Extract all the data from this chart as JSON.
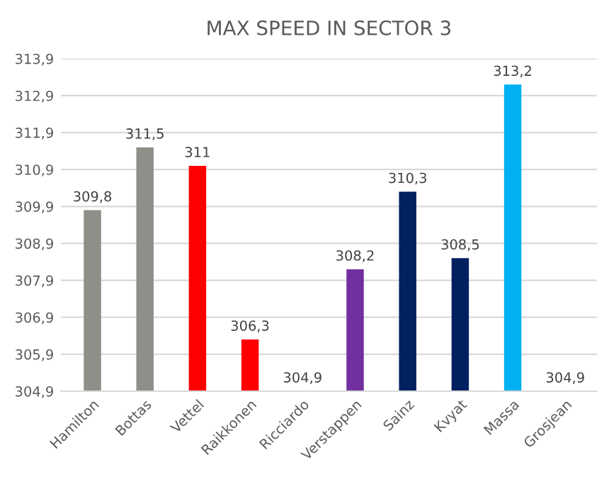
{
  "chart_data": {
    "type": "bar",
    "title": "MAX SPEED IN SECTOR 3",
    "categories": [
      "Hamilton",
      "Bottas",
      "Vettel",
      "Raikkonen",
      "Ricciardo",
      "Verstappen",
      "Sainz",
      "Kvyat",
      "Massa",
      "Grosjean"
    ],
    "values": [
      309.8,
      311.5,
      311,
      306.3,
      304.9,
      308.2,
      310.3,
      308.5,
      313.2,
      304.9
    ],
    "value_labels": [
      "309,8",
      "311,5",
      "311",
      "306,3",
      "304,9",
      "308,2",
      "310,3",
      "308,5",
      "313,2",
      "304,9"
    ],
    "colors": [
      "#8c9088",
      "#8c9088",
      "#ff0000",
      "#ff0000",
      "#ff0000",
      "#7030a0",
      "#002060",
      "#002060",
      "#00b0f0",
      "#808080"
    ],
    "ylim": [
      304.9,
      313.9
    ],
    "yticks": [
      {
        "value": 304.9,
        "label": "304,9"
      },
      {
        "value": 305.9,
        "label": "305,9"
      },
      {
        "value": 306.9,
        "label": "306,9"
      },
      {
        "value": 307.9,
        "label": "307,9"
      },
      {
        "value": 308.9,
        "label": "308,9"
      },
      {
        "value": 309.9,
        "label": "309,9"
      },
      {
        "value": 310.9,
        "label": "310,9"
      },
      {
        "value": 311.9,
        "label": "311,9"
      },
      {
        "value": 312.9,
        "label": "312,9"
      },
      {
        "value": 313.9,
        "label": "313,9"
      }
    ],
    "grid": "y"
  }
}
